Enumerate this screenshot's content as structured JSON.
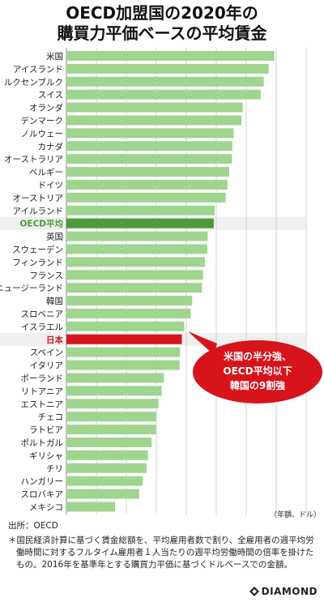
{
  "title": [
    "OECD加盟国の2020年の",
    "購買力平価ベースの平均賃金"
  ],
  "callout": [
    "米国の半分強、",
    "OECD平均以下",
    "韓国の9割強"
  ],
  "source": "出所：OECD",
  "note": "＊国民経済計算に基づく賃金総額を、平均雇用者数で割り、全雇用者の週平均労働時間に対するフルタイム雇用者１人当たりの週平均労働時間の倍率を掛けたもの。2016年を基準年とする購買力平価に基づくドルベースでの金額。",
  "brand": "DIAMOND",
  "colors": {
    "bar": "#9fd58f",
    "oecd_bar": "#4c9a3a",
    "oecd_label": "#4c9a3a",
    "japan": "#d7141c",
    "highlight_bg": "#f0f0f0"
  },
  "chart_data": {
    "type": "bar",
    "orientation": "horizontal",
    "xlabel": "（年額、ドル）",
    "xlim": [
      0,
      80000
    ],
    "xticks": [
      0,
      10000,
      20000,
      30000,
      40000,
      50000,
      60000,
      70000,
      80000
    ],
    "xtick_labels": [
      "0",
      "10,000",
      "20,000",
      "30,000",
      "40,000",
      "50,000",
      "60,000",
      "70,000",
      "80,000"
    ],
    "grid": true,
    "categories": [
      "米国",
      "アイスランド",
      "ルクセンブルク",
      "スイス",
      "オランダ",
      "デンマーク",
      "ノルウェー",
      "カナダ",
      "オーストラリア",
      "ベルギー",
      "ドイツ",
      "オーストリア",
      "アイルランド",
      "OECD平均",
      "英国",
      "スウェーデン",
      "フィンランド",
      "フランス",
      "ニュージーランド",
      "韓国",
      "スロベニア",
      "イスラエル",
      "日本",
      "スペイン",
      "イタリア",
      "ポーランド",
      "リトアニア",
      "エストニア",
      "チェコ",
      "ラトビア",
      "ポルトガル",
      "ギリシャ",
      "チリ",
      "ハンガリー",
      "スロバキア",
      "メキシコ"
    ],
    "values": [
      69392,
      67488,
      65854,
      64824,
      58828,
      58430,
      55780,
      55342,
      55206,
      54327,
      53745,
      53132,
      49474,
      49165,
      47147,
      47020,
      46230,
      45581,
      45246,
      41960,
      41445,
      39322,
      38515,
      37922,
      37769,
      32527,
      31811,
      30720,
      29885,
      29876,
      28410,
      27207,
      26729,
      25409,
      24290,
      16230
    ],
    "highlight": {
      "OECD平均": "oecd",
      "日本": "japan"
    }
  }
}
